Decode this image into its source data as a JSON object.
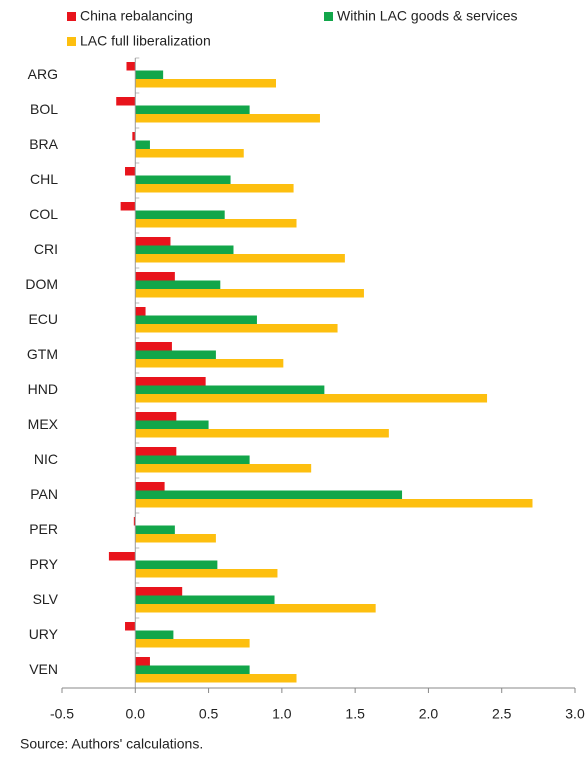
{
  "chart_data": {
    "type": "bar",
    "orientation": "horizontal",
    "categories": [
      "ARG",
      "BOL",
      "BRA",
      "CHL",
      "COL",
      "CRI",
      "DOM",
      "ECU",
      "GTM",
      "HND",
      "MEX",
      "NIC",
      "PAN",
      "PER",
      "PRY",
      "SLV",
      "URY",
      "VEN"
    ],
    "series": [
      {
        "name": "China rebalancing",
        "color": "#e8141c",
        "values": [
          -0.06,
          -0.13,
          -0.02,
          -0.07,
          -0.1,
          0.24,
          0.27,
          0.07,
          0.25,
          0.48,
          0.28,
          0.28,
          0.2,
          -0.01,
          -0.18,
          0.32,
          -0.07,
          0.1
        ]
      },
      {
        "name": "Within LAC goods & services",
        "color": "#12a64a",
        "values": [
          0.19,
          0.78,
          0.1,
          0.65,
          0.61,
          0.67,
          0.58,
          0.83,
          0.55,
          1.29,
          0.5,
          0.78,
          1.82,
          0.27,
          0.56,
          0.95,
          0.26,
          0.78
        ]
      },
      {
        "name": "LAC full liberalization",
        "color": "#fdbf0f",
        "values": [
          0.96,
          1.26,
          0.74,
          1.08,
          1.1,
          1.43,
          1.56,
          1.38,
          1.01,
          2.4,
          1.73,
          1.2,
          2.71,
          0.55,
          0.97,
          1.64,
          0.78,
          1.1
        ]
      }
    ],
    "xlim": [
      -0.5,
      3.0
    ],
    "xticks": [
      -0.5,
      {
        "value": 0,
        "label": "0.0"
      },
      0.5,
      {
        "value": 1,
        "label": "1.0"
      },
      1.5,
      {
        "value": 2,
        "label": "2.0"
      },
      2.5,
      {
        "value": 3,
        "label": "3.0"
      }
    ],
    "source": "Source: Authors' calculations."
  }
}
